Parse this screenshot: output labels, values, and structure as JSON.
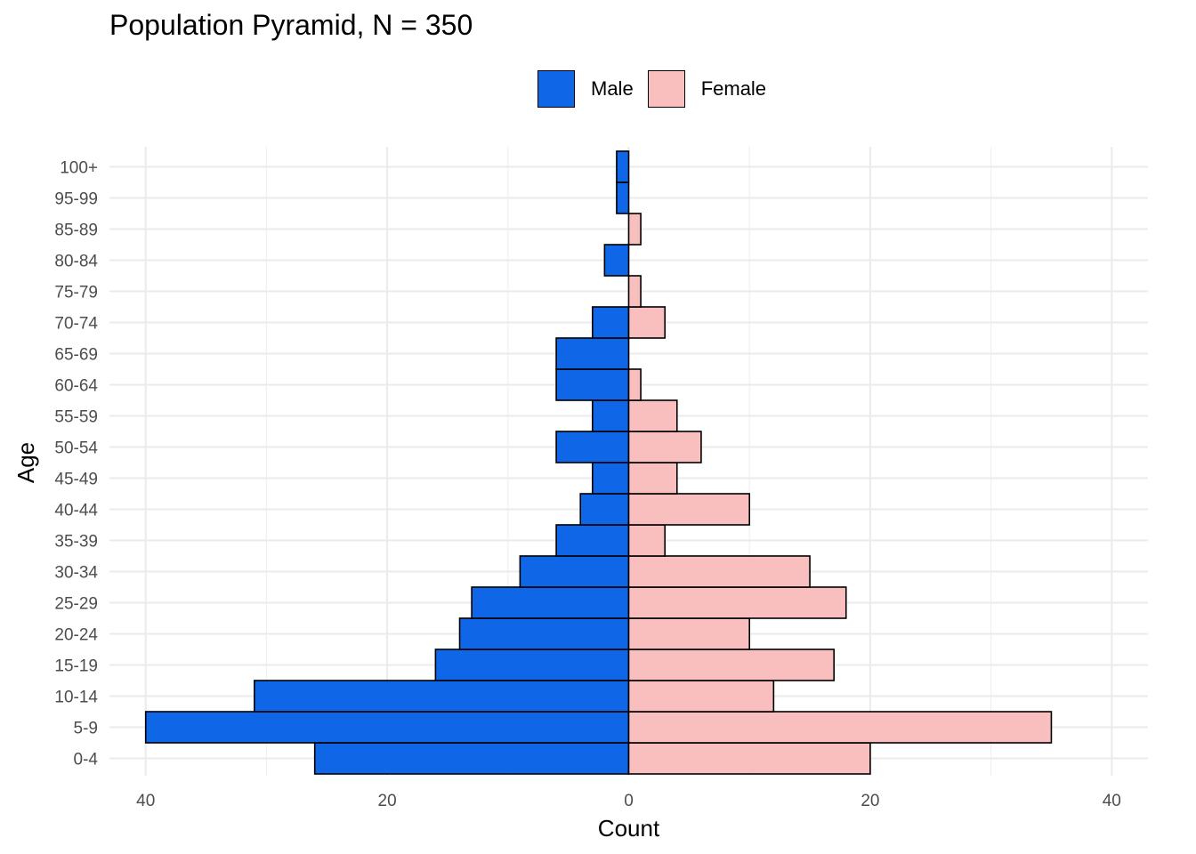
{
  "chart_data": {
    "type": "bar",
    "orientation": "horizontal",
    "title": "Population Pyramid, N = 350",
    "xlabel": "Count",
    "ylabel": "Age",
    "categories": [
      "0-4",
      "5-9",
      "10-14",
      "15-19",
      "20-24",
      "25-29",
      "30-34",
      "35-39",
      "40-44",
      "45-49",
      "50-54",
      "55-59",
      "60-64",
      "65-69",
      "70-74",
      "75-79",
      "80-84",
      "85-89",
      "95-99",
      "100+"
    ],
    "series": [
      {
        "name": "Male",
        "color": "#0F66E6",
        "values": [
          26,
          40,
          31,
          16,
          14,
          13,
          9,
          6,
          4,
          3,
          6,
          3,
          6,
          6,
          3,
          0,
          2,
          0,
          1,
          1
        ]
      },
      {
        "name": "Female",
        "color": "#F9BFBF",
        "values": [
          20,
          35,
          12,
          17,
          10,
          18,
          15,
          3,
          10,
          4,
          6,
          4,
          1,
          0,
          3,
          1,
          0,
          1,
          0,
          0
        ]
      }
    ],
    "xlim": [
      -43,
      43
    ],
    "x_ticks": [
      -40,
      -20,
      0,
      20,
      40
    ],
    "x_tick_labels": [
      "40",
      "20",
      "0",
      "20",
      "40"
    ],
    "legend_position": "top",
    "grid": true
  }
}
